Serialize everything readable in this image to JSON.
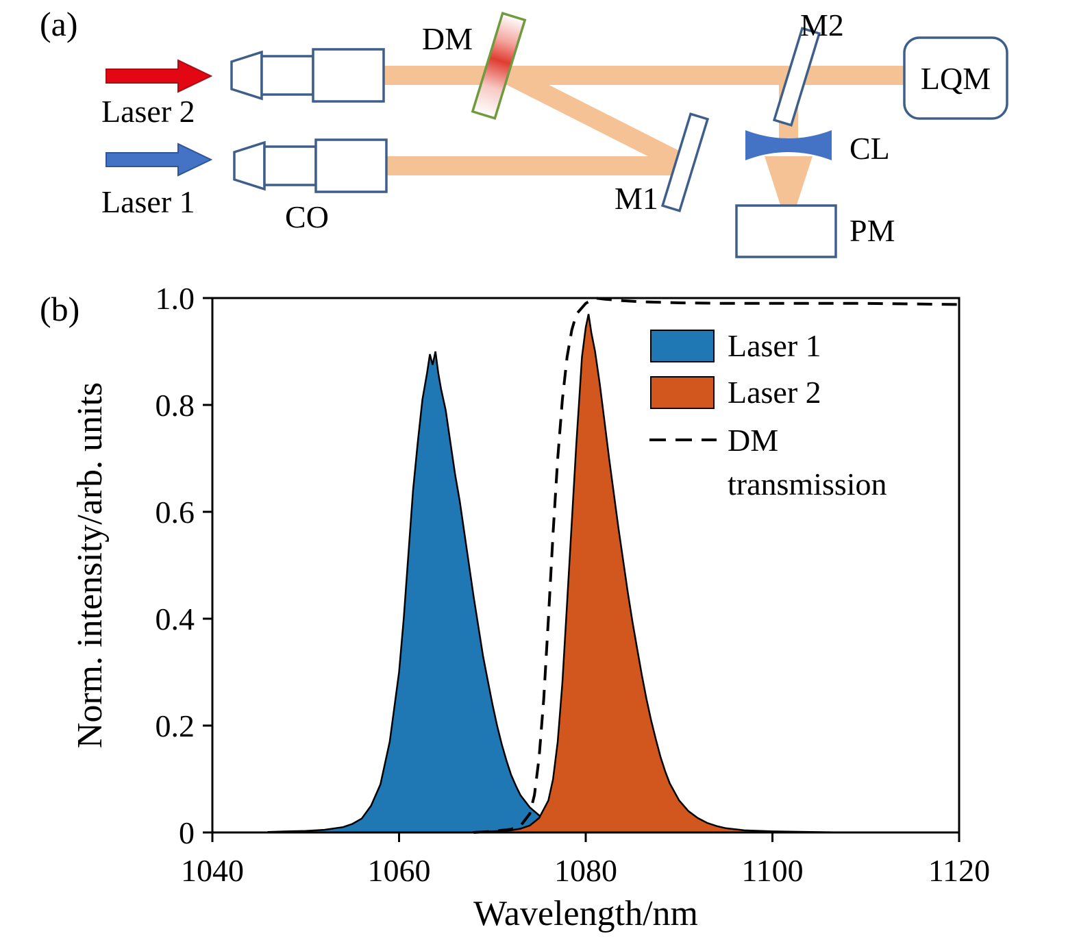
{
  "figure": {
    "panel_a_label": "(a)",
    "panel_b_label": "(b)"
  },
  "diagram": {
    "labels": {
      "laser2": "Laser 2",
      "laser1": "Laser 1",
      "co": "CO",
      "dm": "DM",
      "m1": "M1",
      "m2": "M2",
      "cl": "CL",
      "pm": "PM",
      "lqm": "LQM"
    },
    "colors": {
      "beam": "#f4c295",
      "laser2_arrow": "#e30613",
      "laser1_arrow": "#4472c4",
      "outline": "#3e5f8a",
      "dm_outline": "#6f9a3d",
      "lens_fill": "#4472c4"
    }
  },
  "chart_data": {
    "type": "area",
    "title": "",
    "xlabel": "Wavelength/nm",
    "ylabel": "Norm. intensity/arb. units",
    "xlim": [
      1040,
      1120
    ],
    "ylim": [
      0,
      1.0
    ],
    "xticks": [
      1040,
      1060,
      1080,
      1100,
      1120
    ],
    "yticks": [
      0,
      0.2,
      0.4,
      0.6,
      0.8,
      1.0
    ],
    "ytick_labels": [
      "0",
      "0.2",
      "0.4",
      "0.6",
      "0.8",
      "1.0"
    ],
    "grid": false,
    "legend_position": "upper right",
    "series": [
      {
        "name": "Laser 1",
        "type": "area",
        "color": "#1f77b4",
        "x": [
          1046,
          1048,
          1050,
          1052,
          1054,
          1055,
          1056,
          1057,
          1058,
          1059,
          1060,
          1060.5,
          1061,
          1061.5,
          1062,
          1062.5,
          1063,
          1063.3,
          1063.6,
          1063.9,
          1064.2,
          1064.5,
          1065,
          1065.5,
          1066,
          1066.5,
          1067,
          1067.5,
          1068,
          1068.5,
          1069,
          1069.5,
          1070,
          1070.5,
          1071,
          1071.5,
          1072,
          1072.5,
          1073,
          1074,
          1075,
          1076,
          1077,
          1078,
          1080,
          1082,
          1085,
          1090
        ],
        "y": [
          0.001,
          0.002,
          0.003,
          0.005,
          0.01,
          0.016,
          0.026,
          0.05,
          0.09,
          0.17,
          0.3,
          0.4,
          0.52,
          0.64,
          0.73,
          0.81,
          0.86,
          0.895,
          0.875,
          0.9,
          0.86,
          0.83,
          0.79,
          0.73,
          0.67,
          0.62,
          0.56,
          0.5,
          0.44,
          0.385,
          0.33,
          0.285,
          0.24,
          0.2,
          0.165,
          0.135,
          0.108,
          0.088,
          0.07,
          0.047,
          0.032,
          0.021,
          0.014,
          0.009,
          0.005,
          0.003,
          0.001,
          0.0
        ]
      },
      {
        "name": "Laser 2",
        "type": "area",
        "color": "#d2571e",
        "x": [
          1068,
          1070,
          1072,
          1073,
          1074,
          1075,
          1076,
          1076.5,
          1077,
          1077.5,
          1078,
          1078.5,
          1079,
          1079.3,
          1079.6,
          1080,
          1080.3,
          1080.6,
          1081,
          1081.5,
          1082,
          1082.5,
          1083,
          1083.5,
          1084,
          1084.5,
          1085,
          1085.5,
          1086,
          1086.5,
          1087,
          1087.5,
          1088,
          1088.5,
          1089,
          1090,
          1091,
          1092,
          1093,
          1094,
          1095,
          1097,
          1100,
          1104,
          1108
        ],
        "y": [
          0.001,
          0.002,
          0.004,
          0.007,
          0.013,
          0.027,
          0.06,
          0.1,
          0.17,
          0.28,
          0.43,
          0.58,
          0.73,
          0.81,
          0.89,
          0.945,
          0.97,
          0.935,
          0.9,
          0.84,
          0.77,
          0.7,
          0.635,
          0.57,
          0.51,
          0.45,
          0.395,
          0.345,
          0.295,
          0.25,
          0.21,
          0.175,
          0.142,
          0.115,
          0.092,
          0.06,
          0.04,
          0.027,
          0.018,
          0.012,
          0.008,
          0.004,
          0.002,
          0.001,
          0.0
        ]
      },
      {
        "name": "DM transmission",
        "type": "dashed-line",
        "color": "#000000",
        "x": [
          1068,
          1070,
          1072,
          1073,
          1074,
          1074.5,
          1075,
          1075.5,
          1076,
          1076.5,
          1077,
          1077.5,
          1078,
          1078.5,
          1079,
          1080,
          1081,
          1082,
          1084,
          1086,
          1090,
          1095,
          1100,
          1110,
          1120
        ],
        "y": [
          0.0,
          0.002,
          0.006,
          0.012,
          0.035,
          0.07,
          0.14,
          0.25,
          0.4,
          0.56,
          0.7,
          0.81,
          0.89,
          0.94,
          0.97,
          0.99,
          1.0,
          0.998,
          0.995,
          0.993,
          0.991,
          0.99,
          0.99,
          0.99,
          0.988
        ]
      }
    ],
    "legend": [
      {
        "label": "Laser 1",
        "swatch": "fill",
        "color": "#1f77b4"
      },
      {
        "label": "Laser 2",
        "swatch": "fill",
        "color": "#d2571e"
      },
      {
        "label": "DM transmission",
        "label_lines": [
          "DM",
          "transmission"
        ],
        "swatch": "dashed-line",
        "color": "#000000"
      }
    ]
  }
}
